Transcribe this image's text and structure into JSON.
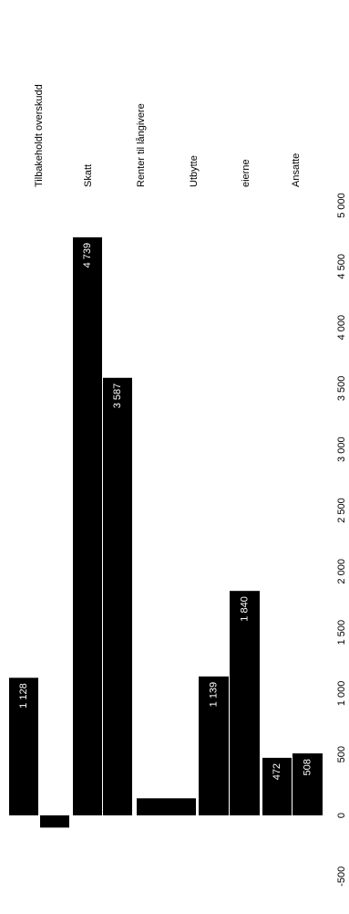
{
  "chart_data": {
    "type": "bar",
    "color": "#000000",
    "labels": [
      "Tilbakeholdt overskudd",
      "Skatt",
      "Renter til långivere",
      "Utbytte",
      "eierne",
      "Ansatte"
    ],
    "categories": [
      null,
      null,
      null,
      null,
      null,
      null,
      null,
      null,
      null
    ],
    "values": [
      1128,
      -100,
      4739,
      3587,
      140,
      1139,
      1840,
      472,
      508
    ],
    "value_labels": [
      "1 128",
      null,
      "4 739",
      "3 587",
      null,
      "1 139",
      "1 840",
      "472",
      "508"
    ],
    "ylim": [
      -600,
      5000
    ],
    "yticks": [
      {
        "value": -500,
        "label": "-500"
      },
      0,
      500,
      {
        "value": 1000,
        "label": "1 000"
      },
      {
        "value": 1500,
        "label": "1 500"
      },
      {
        "value": 2000,
        "label": "2 000"
      },
      {
        "value": 2500,
        "label": "2 500"
      },
      {
        "value": 3000,
        "label": "3 000"
      },
      {
        "value": 3500,
        "label": "3 500"
      },
      {
        "value": 4000,
        "label": "4 000"
      },
      {
        "value": 4500,
        "label": "4 500"
      },
      {
        "value": 5000,
        "label": "5 000"
      }
    ]
  }
}
